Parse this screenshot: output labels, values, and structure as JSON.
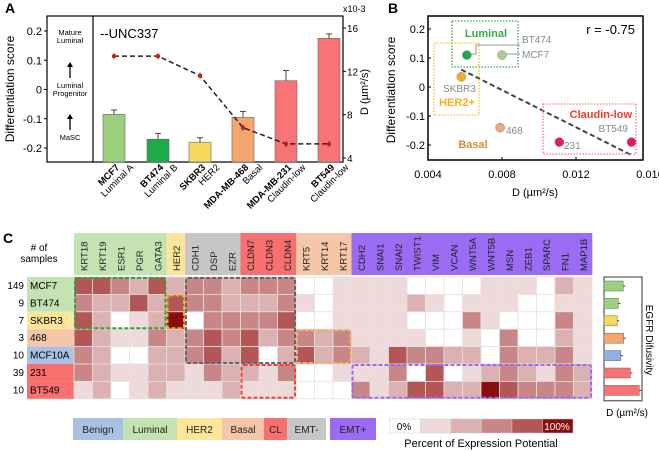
{
  "colors": {
    "luminal": "#c5e2b2",
    "her2": "#fde59a",
    "emt_minus": "#c6c6c6",
    "cl": "#f76f6f",
    "basal": "#f6c6a8",
    "emt_plus": "#9b6cf3",
    "benign": "#a9c1e3",
    "scale": [
      "#ffffff",
      "#eedada",
      "#dcb1b1",
      "#c98686",
      "#b55656",
      "#8b0c0c"
    ]
  },
  "chart_data": [
    {
      "panel": "A",
      "type": "bar",
      "legend": "--UNC337",
      "ylabel": "Differentiation score",
      "y2label": "D (µm²/s)",
      "y2_multiplier": "x10-3",
      "ylim": [
        -0.25,
        0.22
      ],
      "y2lim": [
        4,
        16.5
      ],
      "yticks": [
        "0.2",
        "0.1",
        "0",
        "-0.1",
        "-0.2"
      ],
      "y2ticks": [
        "16",
        "12",
        "8",
        "4"
      ],
      "scale_labels": [
        "Mature Luminal",
        "Luminal Progenitor",
        "MaSC"
      ],
      "categories": [
        {
          "cell": "MCF7",
          "subtype": "Luminal A",
          "color": "#9ccf7e"
        },
        {
          "cell": "BT474",
          "subtype": "Luminal B",
          "color": "#1faa4a"
        },
        {
          "cell": "SKBR3",
          "subtype": "HER2",
          "color": "#f9d65c"
        },
        {
          "cell": "MDA-MB-468",
          "subtype": "Basal",
          "color": "#f4a66e"
        },
        {
          "cell": "MDA-MB-231",
          "subtype": "Claudin-low",
          "color": "#f87474"
        },
        {
          "cell": "BT549",
          "subtype": "Claudin-low",
          "color": "#f87474"
        }
      ],
      "bar_values": [
        -0.085,
        -0.17,
        -0.18,
        -0.095,
        0.03,
        0.175
      ],
      "bar_errors": [
        0.015,
        0.02,
        0.015,
        0.02,
        0.035,
        0.015
      ],
      "line_values_x1e-3": [
        13.4,
        13.4,
        11.6,
        6.8,
        5.3,
        5.3
      ],
      "line_errors_x1e-3": [
        0.3,
        0.3,
        0.4,
        0.3,
        0.3,
        0.3
      ]
    },
    {
      "panel": "B",
      "type": "scatter",
      "xlabel": "D (µm²/s)",
      "ylabel": "Differentiation score",
      "xlim": [
        0.004,
        0.0156
      ],
      "ylim": [
        -0.25,
        0.24
      ],
      "xticks": [
        "0.004",
        "0.008",
        "0.012",
        "0.016"
      ],
      "yticks": [
        "0.2",
        "0.1",
        "0",
        "-0.1",
        "-0.2"
      ],
      "annotation": "r  = -0.75",
      "points": [
        {
          "label": "BT474",
          "x": 0.0061,
          "y": 0.11,
          "color": "#1faa4a"
        },
        {
          "label": "MCF7",
          "x": 0.008,
          "y": 0.11,
          "color": "#a8cd8e"
        },
        {
          "label": "SKBR3",
          "x": 0.0058,
          "y": 0.035,
          "color": "#f2b01e"
        },
        {
          "label": "468",
          "x": 0.0079,
          "y": -0.14,
          "color": "#f0a983"
        },
        {
          "label": "231",
          "x": 0.0111,
          "y": -0.19,
          "color": "#e8185a"
        },
        {
          "label": "BT549",
          "x": 0.015,
          "y": -0.19,
          "color": "#e8185a"
        }
      ],
      "trend": [
        [
          0.0058,
          0.06
        ],
        [
          0.015,
          -0.235
        ]
      ],
      "groups": [
        {
          "label": "Luminal",
          "color": "#3aa64a"
        },
        {
          "label": "HER2+",
          "color": "#f2b01e"
        },
        {
          "label": "Basal",
          "color": "#d98a3c"
        },
        {
          "label": "Claudin-low",
          "color": "#ef3b2c"
        }
      ]
    },
    {
      "panel": "C",
      "type": "heatmap",
      "row_header": "# of samples",
      "rows": [
        {
          "count": "149",
          "name": "MCF7",
          "group": "luminal"
        },
        {
          "count": "9",
          "name": "BT474",
          "group": "luminal"
        },
        {
          "count": "7",
          "name": "SKBR3",
          "group": "her2"
        },
        {
          "count": "3",
          "name": "468",
          "group": "basal"
        },
        {
          "count": "10",
          "name": "MCF10A",
          "group": "benign"
        },
        {
          "count": "39",
          "name": "231",
          "group": "cl"
        },
        {
          "count": "10",
          "name": "BT549",
          "group": "cl"
        }
      ],
      "gene_groups": [
        {
          "group": "luminal",
          "genes": [
            "KRT18",
            "KRT19",
            "ESR1",
            "PGR",
            "GATA3"
          ]
        },
        {
          "group": "her2",
          "genes": [
            "HER2"
          ]
        },
        {
          "group": "emt_minus",
          "genes": [
            "CDH1",
            "DSP",
            "EZR"
          ]
        },
        {
          "group": "cl",
          "genes": [
            "CLDN7",
            "CLDN3",
            "CLDN4"
          ]
        },
        {
          "group": "basal",
          "genes": [
            "KRT5",
            "KRT14",
            "KRT17"
          ]
        },
        {
          "group": "emt_plus",
          "genes": [
            "CDH2",
            "SNAI1",
            "SNAI2",
            "TWIST1",
            "VIM",
            "VCAN",
            "WNT5A",
            "WNT5B",
            "MSN",
            "ZEB1",
            "SPARC",
            "FN1",
            "MAP1B"
          ]
        }
      ],
      "levels_0_to_5": [
        [
          4,
          4,
          3,
          2,
          4,
          2,
          3,
          3,
          2,
          3,
          3,
          3,
          0,
          0,
          1,
          1,
          1,
          1,
          0,
          0,
          0,
          0,
          1,
          1,
          1,
          0,
          2,
          1
        ],
        [
          3,
          2,
          2,
          4,
          2,
          4,
          3,
          3,
          2,
          2,
          2,
          3,
          1,
          0,
          1,
          1,
          1,
          1,
          2,
          1,
          0,
          1,
          1,
          1,
          0,
          0,
          1,
          1
        ],
        [
          4,
          2,
          0,
          1,
          2,
          5,
          0,
          3,
          3,
          3,
          3,
          4,
          0,
          0,
          1,
          1,
          1,
          1,
          0,
          0,
          0,
          3,
          1,
          0,
          0,
          0,
          3,
          1
        ],
        [
          4,
          2,
          1,
          1,
          3,
          2,
          3,
          4,
          3,
          4,
          2,
          3,
          3,
          2,
          3,
          1,
          1,
          1,
          1,
          0,
          0,
          1,
          0,
          3,
          0,
          0,
          2,
          1
        ],
        [
          3,
          2,
          0,
          0,
          2,
          2,
          3,
          4,
          2,
          4,
          0,
          2,
          4,
          2,
          3,
          2,
          1,
          4,
          3,
          3,
          2,
          2,
          0,
          3,
          2,
          2,
          3,
          1
        ],
        [
          3,
          2,
          1,
          1,
          2,
          2,
          1,
          3,
          2,
          2,
          1,
          3,
          0,
          0,
          1,
          1,
          1,
          3,
          0,
          4,
          0,
          1,
          2,
          3,
          2,
          1,
          3,
          2
        ],
        [
          1,
          2,
          0,
          1,
          2,
          1,
          1,
          1,
          2,
          1,
          1,
          1,
          0,
          0,
          0,
          3,
          1,
          2,
          4,
          4,
          2,
          2,
          5,
          4,
          3,
          3,
          3,
          2
        ]
      ],
      "side_bar": {
        "label": "EGFR Difusivity",
        "xlabel": "D (µm²/s)",
        "values": [
          0.008,
          0.006,
          0.0055,
          0.0082,
          0.007,
          0.011,
          0.0147
        ],
        "colors": [
          "#9ccf7e",
          "#9ccf7e",
          "#f9d65c",
          "#f4a66e",
          "#8fb0e0",
          "#f87474",
          "#f87474"
        ]
      },
      "category_legend": [
        {
          "label": "Benign",
          "group": "benign"
        },
        {
          "label": "Luminal",
          "group": "luminal"
        },
        {
          "label": "HER2",
          "group": "her2"
        },
        {
          "label": "Basal",
          "group": "basal"
        },
        {
          "label": "CL",
          "group": "cl"
        },
        {
          "label": "EMT-",
          "group": "emt_minus"
        },
        {
          "label": "EMT+",
          "group": "emt_plus"
        }
      ],
      "scale_legend": {
        "min_label": "0%",
        "max_label": "100%",
        "title": "Percent of Expression Potential"
      }
    }
  ],
  "panel_labels": [
    "A",
    "B",
    "C"
  ]
}
